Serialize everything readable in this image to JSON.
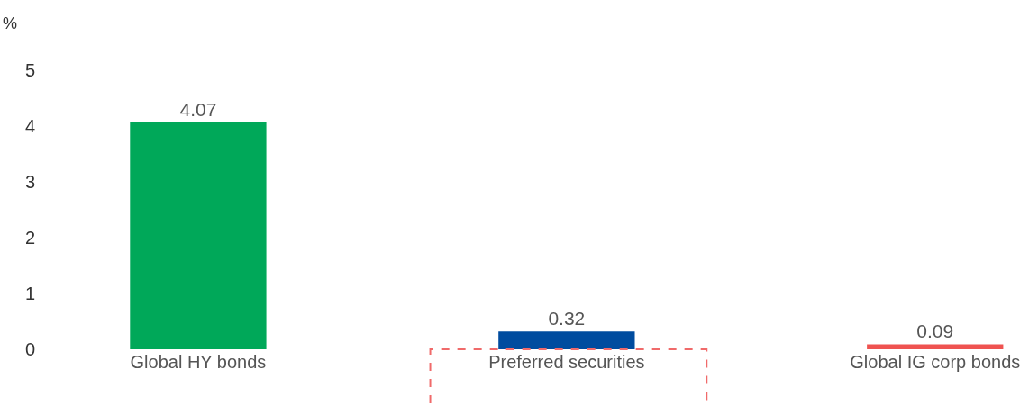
{
  "chart_data": {
    "type": "bar",
    "ylabel": "%",
    "categories": [
      "Global HY bonds",
      "Preferred securities",
      "Global IG corp bonds"
    ],
    "values": [
      4.07,
      0.32,
      0.09
    ],
    "colors": [
      "#00a859",
      "#004c9f",
      "#ef5350"
    ],
    "ylim": [
      0,
      6.26
    ],
    "yticks": [
      0,
      1,
      2,
      3,
      4,
      5
    ],
    "data_labels": true
  }
}
